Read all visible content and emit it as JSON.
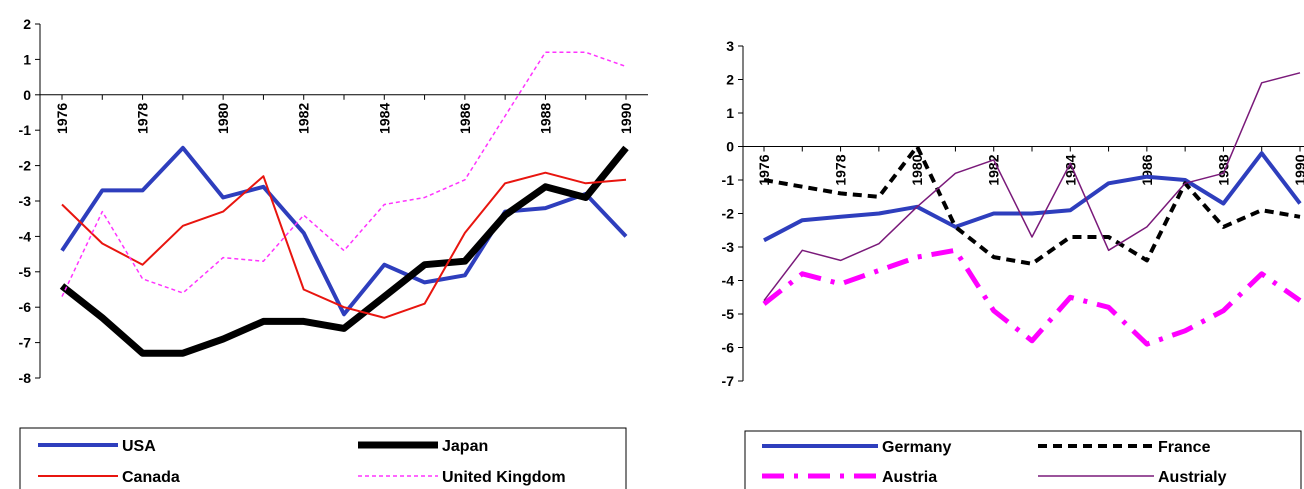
{
  "chart_data": [
    {
      "type": "line",
      "x": [
        1976,
        1977,
        1978,
        1979,
        1980,
        1981,
        1982,
        1983,
        1984,
        1985,
        1986,
        1987,
        1988,
        1989,
        1990
      ],
      "x_tick_labels": [
        "1976",
        "1978",
        "1980",
        "1982",
        "1984",
        "1986",
        "1988",
        "1990"
      ],
      "y_tick_labels": [
        "2",
        "1",
        "0",
        "-1",
        "-2",
        "-3",
        "-4",
        "-5",
        "-6",
        "-7",
        "-8"
      ],
      "ylim": [
        -8,
        2
      ],
      "grid": false,
      "legend_position": "bottom",
      "series": [
        {
          "name": "USA",
          "color": "#2e3ebd",
          "values": [
            -4.4,
            -2.7,
            -2.7,
            -1.5,
            -2.9,
            -2.6,
            -3.9,
            -6.2,
            -4.8,
            -5.3,
            -5.1,
            -3.3,
            -3.2,
            -2.8,
            -4.0
          ]
        },
        {
          "name": "Japan",
          "color": "#000000",
          "values": [
            -5.4,
            -6.3,
            -7.3,
            -7.3,
            -6.9,
            -6.4,
            -6.4,
            -6.6,
            -5.7,
            -4.8,
            -4.7,
            -3.4,
            -2.6,
            -2.9,
            -1.5
          ]
        },
        {
          "name": "Canada",
          "color": "#e8150f",
          "values": [
            -3.1,
            -4.2,
            -4.8,
            -3.7,
            -3.3,
            -2.3,
            -5.5,
            -6.0,
            -6.3,
            -5.9,
            -3.9,
            -2.5,
            -2.2,
            -2.5,
            -2.4
          ]
        },
        {
          "name": "United Kingdom",
          "color": "#ff33ff",
          "values": [
            -5.7,
            -3.3,
            -5.2,
            -5.6,
            -4.6,
            -4.7,
            -3.4,
            -4.4,
            -3.1,
            -2.9,
            -2.4,
            -0.6,
            1.2,
            1.2,
            0.8
          ]
        }
      ]
    },
    {
      "type": "line",
      "x": [
        1976,
        1977,
        1978,
        1979,
        1980,
        1981,
        1982,
        1983,
        1984,
        1985,
        1986,
        1987,
        1988,
        1989,
        1990
      ],
      "x_tick_labels": [
        "1976",
        "1978",
        "1980",
        "1982",
        "1984",
        "1986",
        "1988",
        "1990"
      ],
      "y_tick_labels": [
        "3",
        "2",
        "1",
        "0",
        "-1",
        "-2",
        "-3",
        "-4",
        "-5",
        "-6",
        "-7"
      ],
      "ylim": [
        -7,
        3
      ],
      "grid": false,
      "legend_position": "bottom",
      "series": [
        {
          "name": "Germany",
          "color": "#2e3ebd",
          "values": [
            -2.8,
            -2.2,
            -2.1,
            -2.0,
            -1.8,
            -2.4,
            -2.0,
            -2.0,
            -1.9,
            -1.1,
            -0.9,
            -1.0,
            -1.7,
            -0.2,
            -1.7
          ]
        },
        {
          "name": "France",
          "color": "#000000",
          "values": [
            -1.0,
            -1.2,
            -1.4,
            -1.5,
            0.0,
            -2.4,
            -3.3,
            -3.5,
            -2.7,
            -2.7,
            -3.4,
            -1.1,
            -2.4,
            -1.9,
            -2.1
          ]
        },
        {
          "name": "Austria",
          "color": "#ff00ff",
          "values": [
            -4.7,
            -3.8,
            -4.1,
            -3.7,
            -3.3,
            -3.1,
            -4.9,
            -5.8,
            -4.5,
            -4.8,
            -5.9,
            -5.5,
            -4.9,
            -3.8,
            -4.6
          ]
        },
        {
          "name": "Austrialy",
          "color": "#7a1a7a",
          "values": [
            -4.6,
            -3.1,
            -3.4,
            -2.9,
            -1.8,
            -0.8,
            -0.4,
            -2.7,
            -0.5,
            -3.1,
            -2.4,
            -1.1,
            -0.8,
            1.9,
            2.2
          ]
        }
      ]
    }
  ]
}
